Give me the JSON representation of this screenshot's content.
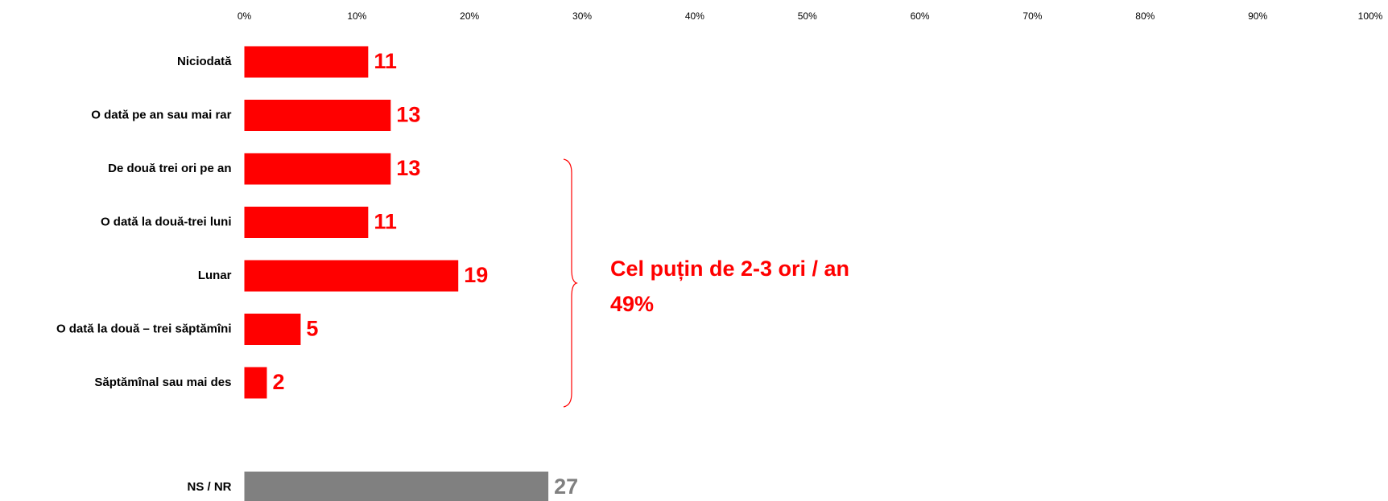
{
  "chart_data": {
    "type": "bar",
    "orientation": "horizontal",
    "categories": [
      "Niciodată",
      "O dată pe an sau mai rar",
      "De două trei ori pe an",
      "O dată la două-trei luni",
      "Lunar",
      "O dată la două – trei săptămîni",
      "Săptămînal sau mai des",
      "NS / NR"
    ],
    "values": [
      11,
      13,
      13,
      11,
      19,
      5,
      2,
      27
    ],
    "colors": [
      "#ff0000",
      "#ff0000",
      "#ff0000",
      "#ff0000",
      "#ff0000",
      "#ff0000",
      "#ff0000",
      "#808080"
    ],
    "xlim": [
      0,
      100
    ],
    "xticks": [
      {
        "value": 0,
        "label": "0%"
      },
      {
        "value": 10,
        "label": "10%"
      },
      {
        "value": 20,
        "label": "20%"
      },
      {
        "value": 30,
        "label": "30%"
      },
      {
        "value": 40,
        "label": "40%"
      },
      {
        "value": 50,
        "label": "50%"
      },
      {
        "value": 60,
        "label": "60%"
      },
      {
        "value": 70,
        "label": "70%"
      },
      {
        "value": 80,
        "label": "80%"
      },
      {
        "value": 90,
        "label": "90%"
      },
      {
        "value": 100,
        "label": "100%"
      }
    ],
    "grid": false,
    "annotations": [
      "Cel puțin de 2-3 ori / an",
      "49%"
    ]
  }
}
